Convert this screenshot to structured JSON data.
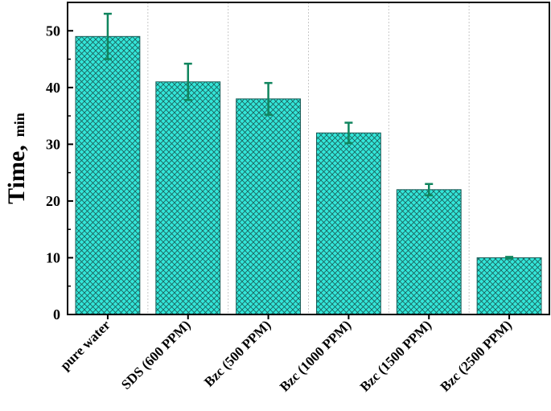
{
  "chart_data": {
    "type": "bar",
    "categories": [
      "pure water",
      "SDS (600 PPM)",
      "Bzc (500 PPM)",
      "Bzc (1000 PPM)",
      "Bzc (1500 PPM)",
      "Bzc (2500 PPM)"
    ],
    "series": [
      {
        "values": [
          49,
          41,
          38,
          32,
          22,
          10
        ],
        "error_low": [
          45,
          37.8,
          35.2,
          30.2,
          21,
          9.85
        ],
        "error_high": [
          53,
          44.2,
          40.8,
          33.8,
          23,
          10.15
        ]
      }
    ],
    "ylabel": "Time,",
    "ylabel_unit": "min",
    "yticks": [
      "0",
      "10",
      "20",
      "30",
      "40",
      "50"
    ],
    "ylim": [
      0,
      55
    ],
    "bar_fill": "#33e6d9",
    "hatch": "crosshatch",
    "hatch_color": "#1a5c57",
    "error_bar_color": "#10855e",
    "grid": "vertical dotted"
  }
}
